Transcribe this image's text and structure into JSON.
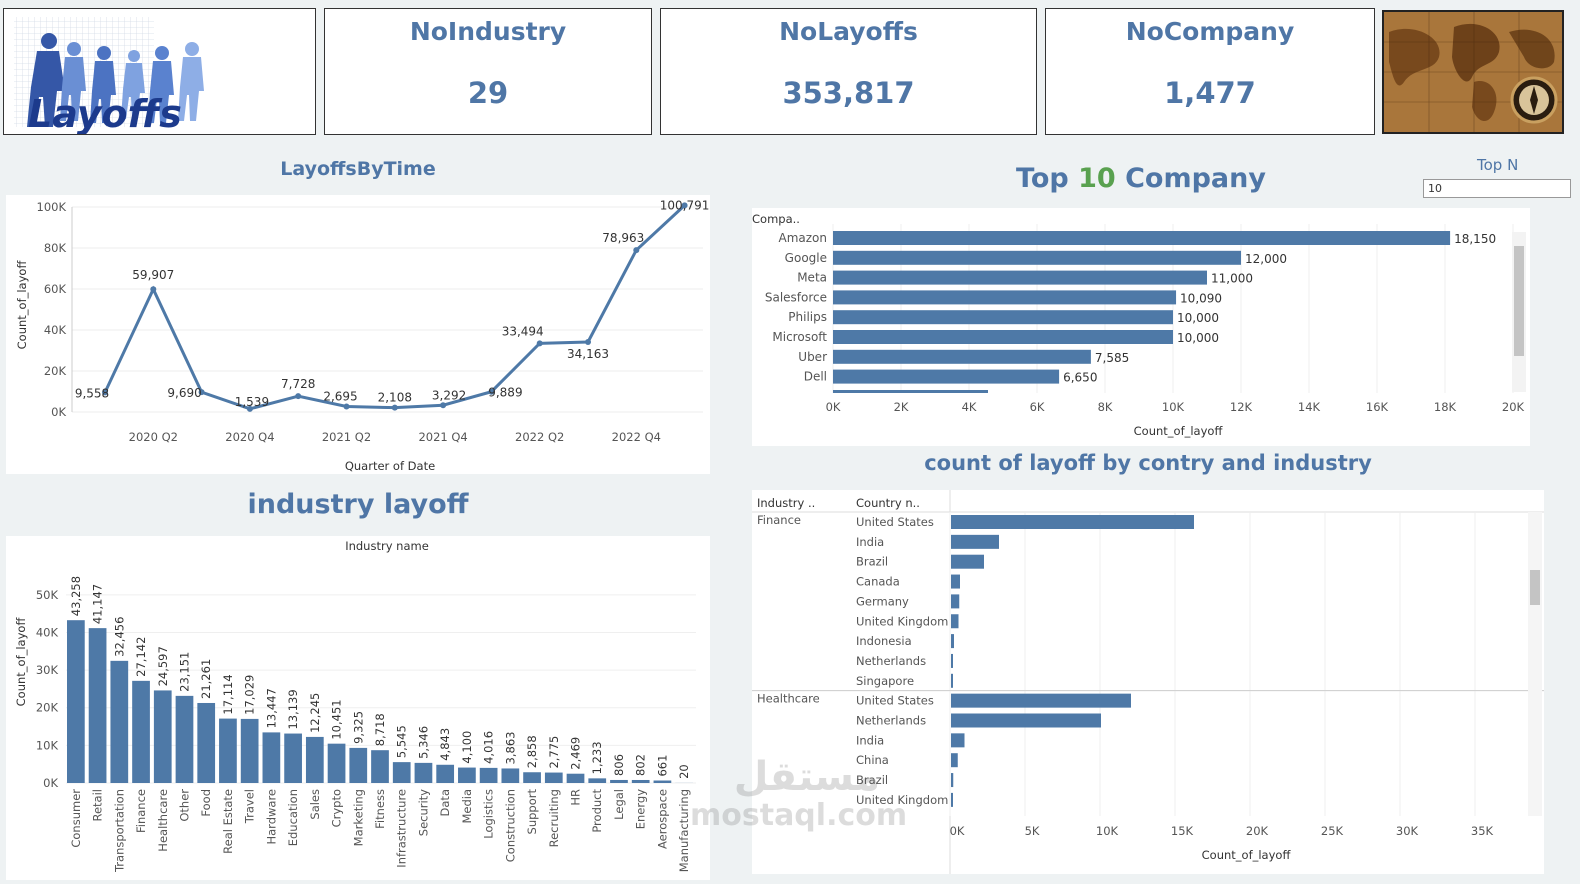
{
  "kpis": [
    {
      "title": "NoIndustry",
      "value": "29"
    },
    {
      "title": "NoLayoffs",
      "value": "353,817"
    },
    {
      "title": "NoCompany",
      "value": "1,477"
    }
  ],
  "logo_text": "Layoffs",
  "watermark": {
    "arabic": "مستقل",
    "latin": "mostaql.com"
  },
  "time_chart_title": "LayoffsByTime",
  "top_title": {
    "prefix": "Top ",
    "n": "10",
    "suffix": " Company"
  },
  "topn": {
    "label": "Top N",
    "value": "10"
  },
  "industry_title": "industry layoff",
  "country_title": "count of layoff by contry and industry",
  "colors": {
    "bar": "#4e79a7",
    "title": "#4f76a6",
    "accent_green": "#59a14f"
  },
  "chart_data": [
    {
      "type": "line",
      "title": "LayoffsByTime",
      "xlabel": "Quarter of Date",
      "ylabel": "Count_of_layoff",
      "ylim": [
        0,
        100000
      ],
      "yticks": [
        "0K",
        "20K",
        "40K",
        "60K",
        "80K",
        "100K"
      ],
      "xticks": [
        "2020 Q2",
        "2020 Q4",
        "2021 Q2",
        "2021 Q4",
        "2022 Q2",
        "2022 Q4"
      ],
      "values": [
        9558,
        59907,
        9690,
        1539,
        7728,
        2695,
        2108,
        3292,
        9889,
        33494,
        34163,
        78963,
        100791
      ],
      "labels": [
        "9,558",
        "59,907",
        "9,690",
        "1,539",
        "7,728",
        "2,695",
        "2,108",
        "3,292",
        "9,889",
        "33,494",
        "34,163",
        "78,963",
        "100,791"
      ]
    },
    {
      "type": "bar",
      "orientation": "horizontal",
      "title": "Top 10 Company",
      "category_header": "Compa..",
      "xlabel": "Count_of_layoff",
      "xlim": [
        0,
        20000
      ],
      "xticks": [
        "0K",
        "2K",
        "4K",
        "6K",
        "8K",
        "10K",
        "12K",
        "14K",
        "16K",
        "18K",
        "20K"
      ],
      "categories": [
        "Amazon",
        "Google",
        "Meta",
        "Salesforce",
        "Philips",
        "Microsoft",
        "Uber",
        "Dell"
      ],
      "values": [
        18150,
        12000,
        11000,
        10090,
        10000,
        10000,
        7585,
        6650
      ],
      "labels": [
        "18,150",
        "12,000",
        "11,000",
        "10,090",
        "10,000",
        "10,000",
        "7,585",
        "6,650"
      ]
    },
    {
      "type": "bar",
      "title": "industry layoff",
      "header": "Industry name",
      "ylabel": "Count_of_layoff",
      "ylim": [
        0,
        55000
      ],
      "yticks": [
        "0K",
        "10K",
        "20K",
        "30K",
        "40K",
        "50K"
      ],
      "categories": [
        "Consumer",
        "Retail",
        "Transportation",
        "Finance",
        "Healthcare",
        "Other",
        "Food",
        "Real Estate",
        "Travel",
        "Hardware",
        "Education",
        "Sales",
        "Crypto",
        "Marketing",
        "Fitness",
        "Infrastructure",
        "Security",
        "Data",
        "Media",
        "Logistics",
        "Construction",
        "Support",
        "Recruiting",
        "HR",
        "Product",
        "Legal",
        "Energy",
        "Aerospace",
        "Manufacturing"
      ],
      "values": [
        43258,
        41147,
        32456,
        27142,
        24597,
        23151,
        21261,
        17114,
        17029,
        13447,
        13139,
        12245,
        10451,
        9325,
        8718,
        5545,
        5346,
        4843,
        4100,
        4016,
        3863,
        2858,
        2775,
        2469,
        1233,
        806,
        802,
        661,
        20
      ],
      "labels": [
        "43,258",
        "41,147",
        "32,456",
        "27,142",
        "24,597",
        "23,151",
        "21,261",
        "17,114",
        "17,029",
        "13,447",
        "13,139",
        "12,245",
        "10,451",
        "9,325",
        "8,718",
        "5,545",
        "5,346",
        "4,843",
        "4,100",
        "4,016",
        "3,863",
        "2,858",
        "2,775",
        "2,469",
        "1,233",
        "806",
        "802",
        "661",
        "20"
      ]
    },
    {
      "type": "bar",
      "orientation": "horizontal",
      "title": "count of layoff by contry and industry",
      "headers": [
        "Industry ..",
        "Country n.."
      ],
      "xlabel": "Count_of_layoff",
      "xlim": [
        0,
        40000
      ],
      "xticks": [
        "0K",
        "5K",
        "10K",
        "15K",
        "20K",
        "25K",
        "30K",
        "35K"
      ],
      "groups": [
        {
          "industry": "Finance",
          "countries": [
            "United States",
            "India",
            "Brazil",
            "Canada",
            "Germany",
            "United Kingdom",
            "Indonesia",
            "Netherlands",
            "Singapore"
          ],
          "values": [
            16200,
            3200,
            2200,
            600,
            550,
            500,
            200,
            80,
            60
          ]
        },
        {
          "industry": "Healthcare",
          "countries": [
            "United States",
            "Netherlands",
            "India",
            "China",
            "Brazil",
            "United Kingdom"
          ],
          "values": [
            12000,
            10000,
            900,
            450,
            150,
            80
          ]
        }
      ]
    }
  ]
}
